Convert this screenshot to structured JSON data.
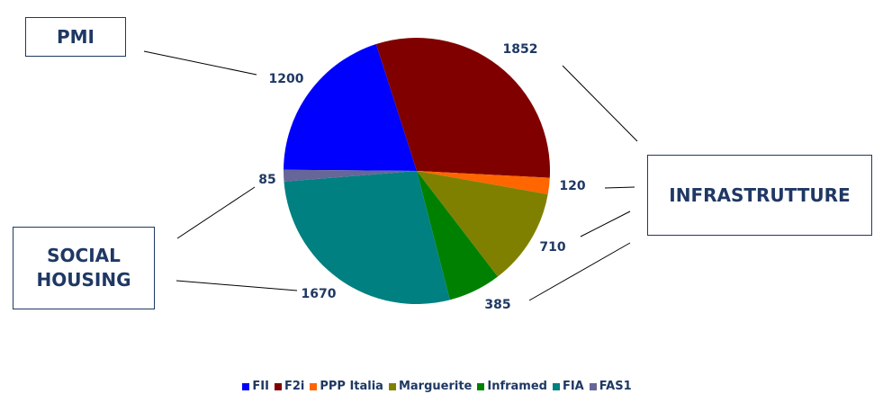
{
  "chart_data": {
    "type": "pie",
    "categories": [
      "FII",
      "F2i",
      "PPP Italia",
      "Marguerite",
      "Inframed",
      "FIA",
      "FAS1"
    ],
    "values": [
      1200,
      1852,
      120,
      710,
      385,
      1670,
      85
    ],
    "colors": [
      "#0000ff",
      "#800000",
      "#ff6600",
      "#808000",
      "#008000",
      "#008080",
      "#666699"
    ],
    "annotations": [
      "PMI",
      "INFRASTRUTTURE",
      "SOCIAL HOUSING"
    ],
    "legend": "bottom"
  }
}
